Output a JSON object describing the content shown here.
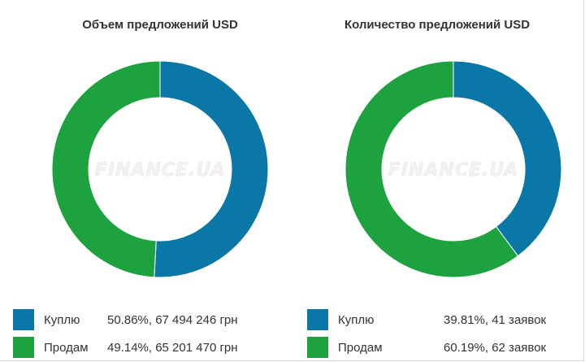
{
  "colors": {
    "buy": "#0a77a7",
    "sell": "#1ea240",
    "background": "#ffffff"
  },
  "watermark_text": "FINANCE.UA",
  "chart_data": [
    {
      "type": "pie",
      "title": "Объем предложений USD",
      "categories": [
        "Куплю",
        "Продам"
      ],
      "values": [
        50.86,
        49.14
      ],
      "legend": [
        {
          "label": "Куплю",
          "value_text": "50.86%, 67 494 246 грн",
          "color": "#0a77a7"
        },
        {
          "label": "Продам",
          "value_text": "49.14%, 65 201 470 грн",
          "color": "#1ea240"
        }
      ]
    },
    {
      "type": "pie",
      "title": "Количество предложений USD",
      "categories": [
        "Куплю",
        "Продам"
      ],
      "values": [
        39.81,
        60.19
      ],
      "legend": [
        {
          "label": "Куплю",
          "value_text": "39.81%, 41 заявок",
          "color": "#0a77a7"
        },
        {
          "label": "Продам",
          "value_text": "60.19%, 62 заявок",
          "color": "#1ea240"
        }
      ]
    }
  ]
}
